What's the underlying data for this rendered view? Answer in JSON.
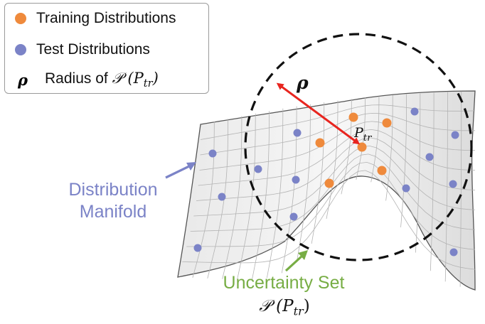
{
  "legend": {
    "items": [
      {
        "label": "Training Distributions",
        "color": "#ef8a3c",
        "marker": "circle"
      },
      {
        "label": "Test Distributions",
        "color": "#7b83c7",
        "marker": "circle"
      },
      {
        "label": "Radius of",
        "symbol": "ρ",
        "math_suffix_main": "𝒫 (P",
        "math_suffix_sub": "tr",
        "math_suffix_close": ")"
      }
    ]
  },
  "labels": {
    "manifold_line1": "Distribution",
    "manifold_line2": "Manifold",
    "uncertainty": "Uncertainty Set",
    "uncertainty_math_main": "𝒫 (P",
    "uncertainty_math_sub": "tr",
    "uncertainty_math_close": ")",
    "rho": "ρ",
    "ptr_main": "P",
    "ptr_sub": "tr"
  },
  "colors": {
    "training": "#ef8a3c",
    "test": "#7b83c7",
    "radius_arrow": "#e8251f",
    "manifold_arrow": "#7b83c7",
    "uncertainty_arrow": "#77ad44",
    "circle": "#111111",
    "surface_fill": "#ededed",
    "grid_line": "#a9a9a9"
  }
}
